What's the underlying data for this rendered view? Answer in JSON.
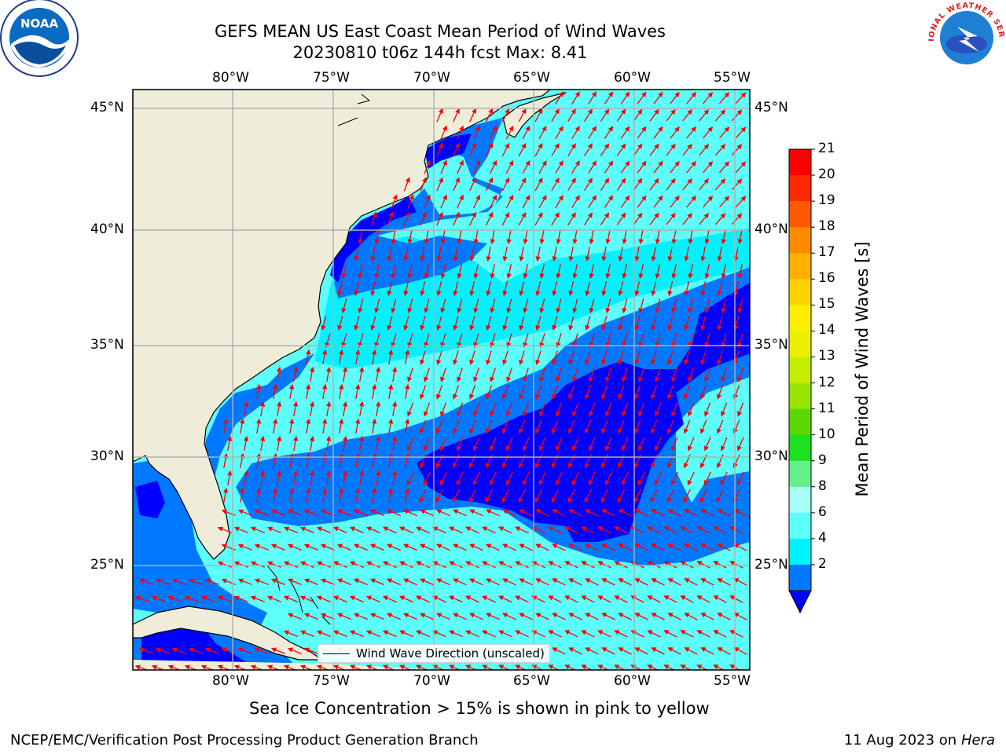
{
  "header": {
    "title_line1": "GEFS MEAN US East Coast Mean Period of Wind Waves",
    "title_line2": "20230810 t06z 144h fcst   Max: 8.41"
  },
  "map": {
    "lon_labels_top": [
      "80°W",
      "75°W",
      "70°W",
      "65°W",
      "60°W",
      "55°W"
    ],
    "lon_labels_bottom": [
      "80°W",
      "75°W",
      "70°W",
      "65°W",
      "60°W",
      "55°W"
    ],
    "lat_labels_left": [
      "45°N",
      "40°N",
      "35°N",
      "30°N",
      "25°N"
    ],
    "lat_labels_right": [
      "45°N",
      "40°N",
      "35°N",
      "30°N",
      "25°N"
    ],
    "legend_label": "Wind Wave Direction (unscaled)",
    "colors": {
      "land": "#efedda",
      "grid": "#b0b0b0",
      "arrow": "#ff0000",
      "coast": "#000000"
    }
  },
  "colorbar": {
    "label": "Mean Period of Wind Waves [s]",
    "ticks": [
      "21",
      "20",
      "19",
      "18",
      "17",
      "16",
      "15",
      "14",
      "13",
      "12",
      "11",
      "10",
      "9",
      "8",
      "6",
      "4",
      "2"
    ],
    "colors": [
      "#ff0000",
      "#ff2a00",
      "#ff5a00",
      "#ff8a00",
      "#ffb000",
      "#ffd200",
      "#ffee00",
      "#eaf000",
      "#c6ee00",
      "#9ae600",
      "#5ad800",
      "#1ee01e",
      "#64f08a",
      "#a6fff4",
      "#5cfffa",
      "#00f2ff",
      "#0078ff"
    ],
    "under_color": "#0000ff"
  },
  "logos": {
    "noaa_text": "NOAA",
    "nws_text": "NATIONAL WEATHER SERVICE"
  },
  "footer": {
    "subtitle": "Sea Ice Concentration > 15% is shown in pink to yellow",
    "left": "NCEP/EMC/Verification Post Processing Product Generation Branch",
    "right_date": "11 Aug 2023 on",
    "right_machine": "Hera"
  }
}
